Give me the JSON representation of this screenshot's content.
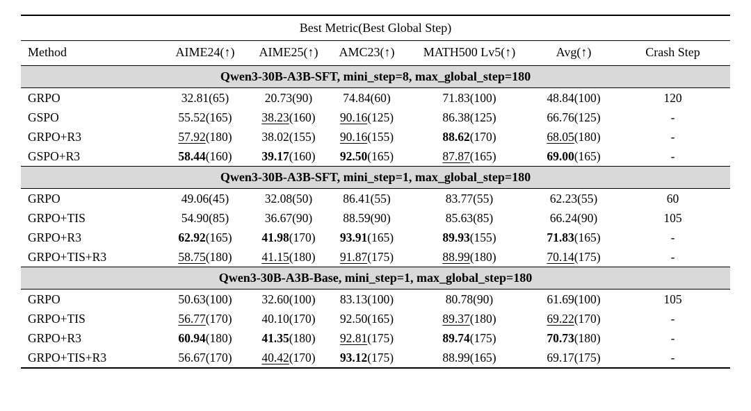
{
  "table": {
    "span_header": "Best Metric(Best Global Step)",
    "columns": [
      "Method",
      "AIME24(↑)",
      "AIME25(↑)",
      "AMC23(↑)",
      "MATH500 Lv5(↑)",
      "Avg(↑)",
      "Crash Step"
    ],
    "band_bg": "#d9d9d9",
    "legend_note": {
      "bold_means": "best value",
      "underline_means": "second-best value"
    },
    "sections": [
      {
        "title": "Qwen3-30B-A3B-SFT, mini_step=8, max_global_step=180",
        "rows": [
          {
            "method": "GRPO",
            "cells": [
              {
                "v": "32.81",
                "s": "(65)",
                "f": "n"
              },
              {
                "v": "20.73",
                "s": "(90)",
                "f": "n"
              },
              {
                "v": "74.84",
                "s": "(60)",
                "f": "n"
              },
              {
                "v": "71.83",
                "s": "(100)",
                "f": "n"
              },
              {
                "v": "48.84",
                "s": "(100)",
                "f": "n"
              }
            ],
            "crash": "120"
          },
          {
            "method": "GSPO",
            "cells": [
              {
                "v": "55.52",
                "s": "(165)",
                "f": "n"
              },
              {
                "v": "38.23",
                "s": "(160)",
                "f": "u"
              },
              {
                "v": "90.16",
                "s": "(125)",
                "f": "u"
              },
              {
                "v": "86.38",
                "s": "(125)",
                "f": "n"
              },
              {
                "v": "66.76",
                "s": "(125)",
                "f": "n"
              }
            ],
            "crash": "-"
          },
          {
            "method": "GRPO+R3",
            "cells": [
              {
                "v": "57.92",
                "s": "(180)",
                "f": "u"
              },
              {
                "v": "38.02",
                "s": "(155)",
                "f": "n"
              },
              {
                "v": "90.16",
                "s": "(155)",
                "f": "u"
              },
              {
                "v": "88.62",
                "s": "(170)",
                "f": "b"
              },
              {
                "v": "68.05",
                "s": "(180)",
                "f": "u"
              }
            ],
            "crash": "-"
          },
          {
            "method": "GSPO+R3",
            "cells": [
              {
                "v": "58.44",
                "s": "(160)",
                "f": "b"
              },
              {
                "v": "39.17",
                "s": "(160)",
                "f": "b"
              },
              {
                "v": "92.50",
                "s": "(165)",
                "f": "b"
              },
              {
                "v": "87.87",
                "s": "(165)",
                "f": "u"
              },
              {
                "v": "69.00",
                "s": "(165)",
                "f": "b"
              }
            ],
            "crash": "-"
          }
        ]
      },
      {
        "title": "Qwen3-30B-A3B-SFT, mini_step=1, max_global_step=180",
        "rows": [
          {
            "method": "GRPO",
            "cells": [
              {
                "v": "49.06",
                "s": "(45)",
                "f": "n"
              },
              {
                "v": "32.08",
                "s": "(50)",
                "f": "n"
              },
              {
                "v": "86.41",
                "s": "(55)",
                "f": "n"
              },
              {
                "v": "83.77",
                "s": "(55)",
                "f": "n"
              },
              {
                "v": "62.23",
                "s": "(55)",
                "f": "n"
              }
            ],
            "crash": "60"
          },
          {
            "method": "GRPO+TIS",
            "cells": [
              {
                "v": "54.90",
                "s": "(85)",
                "f": "n"
              },
              {
                "v": "36.67",
                "s": "(90)",
                "f": "n"
              },
              {
                "v": "88.59",
                "s": "(90)",
                "f": "n"
              },
              {
                "v": "85.63",
                "s": "(85)",
                "f": "n"
              },
              {
                "v": "66.24",
                "s": "(90)",
                "f": "n"
              }
            ],
            "crash": "105"
          },
          {
            "method": "GRPO+R3",
            "cells": [
              {
                "v": "62.92",
                "s": "(165)",
                "f": "b"
              },
              {
                "v": "41.98",
                "s": "(170)",
                "f": "b"
              },
              {
                "v": "93.91",
                "s": "(165)",
                "f": "b"
              },
              {
                "v": "89.93",
                "s": "(155)",
                "f": "b"
              },
              {
                "v": "71.83",
                "s": "(165)",
                "f": "b"
              }
            ],
            "crash": "-"
          },
          {
            "method": "GRPO+TIS+R3",
            "cells": [
              {
                "v": "58.75",
                "s": "(180)",
                "f": "u"
              },
              {
                "v": "41.15",
                "s": "(180)",
                "f": "u"
              },
              {
                "v": "91.87",
                "s": "(175)",
                "f": "u"
              },
              {
                "v": "88.99",
                "s": "(180)",
                "f": "u"
              },
              {
                "v": "70.14",
                "s": "(175)",
                "f": "u"
              }
            ],
            "crash": "-"
          }
        ]
      },
      {
        "title": "Qwen3-30B-A3B-Base, mini_step=1, max_global_step=180",
        "rows": [
          {
            "method": "GRPO",
            "cells": [
              {
                "v": "50.63",
                "s": "(100)",
                "f": "n"
              },
              {
                "v": "32.60",
                "s": "(100)",
                "f": "n"
              },
              {
                "v": "83.13",
                "s": "(100)",
                "f": "n"
              },
              {
                "v": "80.78",
                "s": "(90)",
                "f": "n"
              },
              {
                "v": "61.69",
                "s": "(100)",
                "f": "n"
              }
            ],
            "crash": "105"
          },
          {
            "method": "GRPO+TIS",
            "cells": [
              {
                "v": "56.77",
                "s": "(170)",
                "f": "u"
              },
              {
                "v": "40.10",
                "s": "(170)",
                "f": "n"
              },
              {
                "v": "92.50",
                "s": "(165)",
                "f": "n"
              },
              {
                "v": "89.37",
                "s": "(180)",
                "f": "u"
              },
              {
                "v": "69.22",
                "s": "(170)",
                "f": "u"
              }
            ],
            "crash": "-"
          },
          {
            "method": "GRPO+R3",
            "cells": [
              {
                "v": "60.94",
                "s": "(180)",
                "f": "b"
              },
              {
                "v": "41.35",
                "s": "(180)",
                "f": "b"
              },
              {
                "v": "92.81",
                "s": "(175)",
                "f": "u"
              },
              {
                "v": "89.74",
                "s": "(175)",
                "f": "b"
              },
              {
                "v": "70.73",
                "s": "(180)",
                "f": "b"
              }
            ],
            "crash": "-"
          },
          {
            "method": "GRPO+TIS+R3",
            "cells": [
              {
                "v": "56.67",
                "s": "(170)",
                "f": "n"
              },
              {
                "v": "40.42",
                "s": "(170)",
                "f": "u"
              },
              {
                "v": "93.12",
                "s": "(175)",
                "f": "b"
              },
              {
                "v": "88.99",
                "s": "(165)",
                "f": "n"
              },
              {
                "v": "69.17",
                "s": "(175)",
                "f": "n"
              }
            ],
            "crash": "-"
          }
        ]
      }
    ]
  }
}
